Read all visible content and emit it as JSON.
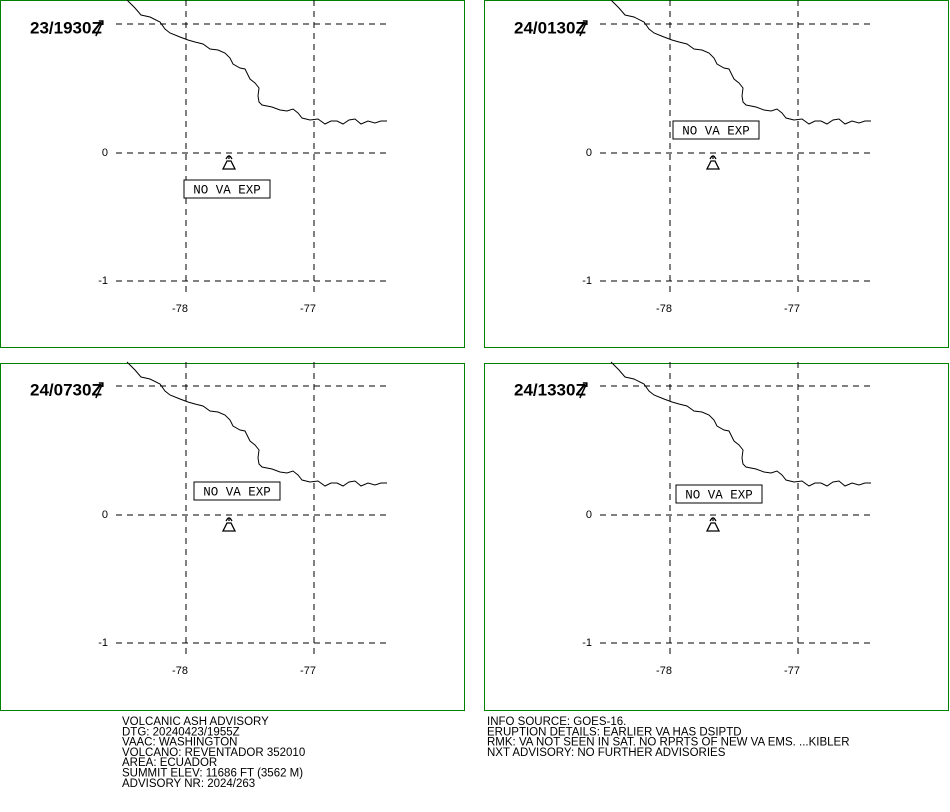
{
  "grid": {
    "lon_ticks": [
      -78,
      -77
    ],
    "lat_ticks": [
      0,
      -1
    ]
  },
  "panels": [
    {
      "time": "23/1930Z",
      "label": "NO VA EXP"
    },
    {
      "time": "24/0130Z",
      "label": "NO VA EXP"
    },
    {
      "time": "24/0730Z",
      "label": "NO VA EXP"
    },
    {
      "time": "24/1330Z",
      "label": "NO VA EXP"
    }
  ],
  "advisory_left": [
    "VOLCANIC ASH ADVISORY",
    "DTG: 20240423/1955Z",
    "VAAC: WASHINGTON",
    "VOLCANO: REVENTADOR 352010",
    "AREA: ECUADOR",
    "SUMMIT ELEV: 11686 FT (3562 M)",
    "ADVISORY NR: 2024/263"
  ],
  "advisory_right": [
    "INFO SOURCE: GOES-16.",
    "ERUPTION DETAILS: EARLIER VA HAS DSIPTD",
    "RMK: VA NOT SEEN IN SAT. NO RPRTS OF NEW VA EMS. ...KIBLER",
    "NXT ADVISORY: NO FURTHER ADVISORIES"
  ]
}
